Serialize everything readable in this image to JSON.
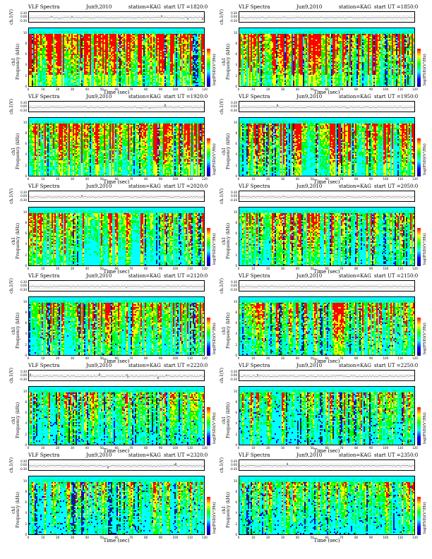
{
  "chart_data": {
    "type": "heatmap",
    "colorbar": {
      "label": "log(PSD)(V²/Hz)",
      "colors": [
        "#00008b",
        "#0000ff",
        "#00ffff",
        "#00ff00",
        "#ffff00",
        "#ff0000"
      ],
      "tick_labels": [
        "-",
        "-",
        "-"
      ]
    },
    "x_axis": {
      "label": "Time (sec)",
      "ticks": [
        "0",
        "10",
        "20",
        "30",
        "40",
        "50",
        "60",
        "70",
        "80",
        "90",
        "100",
        "110",
        "120"
      ],
      "range": [
        0,
        120
      ]
    },
    "freq_axis": {
      "label": "Frequency (kHz)",
      "ticks": [
        "0",
        "2",
        "4",
        "6",
        "8",
        "10"
      ],
      "range": [
        0,
        11
      ]
    },
    "trace_axis": {
      "label": "ch.1(V)",
      "ticks": [
        "0.30",
        "0.00",
        "-0.30"
      ]
    },
    "spec_label": "ch1",
    "panels": [
      {
        "date": "Jun9,2010",
        "station": "station=KAG",
        "start": "start UT =1820:0",
        "band_top": 0.25,
        "red": 0.65,
        "darkblue": 0.0
      },
      {
        "date": "Jun9,2010",
        "station": "station=KAG",
        "start": "start UT =1850:0",
        "band_top": 0.25,
        "red": 0.62,
        "darkblue": 0.0
      },
      {
        "date": "Jun9,2010",
        "station": "station=KAG",
        "start": "start UT =1920:0",
        "band_top": 0.25,
        "red": 0.55,
        "darkblue": 0.0
      },
      {
        "date": "Jun9,2010",
        "station": "station=KAG",
        "start": "start UT =1950:0",
        "band_top": 0.25,
        "red": 0.5,
        "darkblue": 0.0
      },
      {
        "date": "Jun9,2010",
        "station": "station=KAG",
        "start": "start UT =2020:0",
        "band_top": 0.28,
        "red": 0.42,
        "darkblue": 0.0
      },
      {
        "date": "Jun9,2010",
        "station": "station=KAG",
        "start": "start UT =2050:0",
        "band_top": 0.3,
        "red": 0.38,
        "darkblue": 0.02
      },
      {
        "date": "Jun9,2010",
        "station": "station=KAG",
        "start": "start UT =2120:0",
        "band_top": 0.3,
        "red": 0.45,
        "darkblue": 0.02
      },
      {
        "date": "Jun9,2010",
        "station": "station=KAG",
        "start": "start UT =2150:0",
        "band_top": 0.3,
        "red": 0.4,
        "darkblue": 0.05
      },
      {
        "date": "Jun9,2010",
        "station": "station=KAG",
        "start": "start UT =2220:0",
        "band_top": 0.32,
        "red": 0.3,
        "darkblue": 0.06
      },
      {
        "date": "Jun9,2010",
        "station": "station=KAG",
        "start": "start UT =2250:0",
        "band_top": 0.32,
        "red": 0.28,
        "darkblue": 0.07
      },
      {
        "date": "Jun9,2010",
        "station": "station=KAG",
        "start": "start UT =2320:0",
        "band_top": 0.36,
        "red": 0.2,
        "darkblue": 0.08
      },
      {
        "date": "Jun9,2010",
        "station": "station=KAG",
        "start": "start UT =2350:0",
        "band_top": 0.36,
        "red": 0.2,
        "darkblue": 0.08
      }
    ],
    "title_prefix": "VLF Spectra"
  }
}
